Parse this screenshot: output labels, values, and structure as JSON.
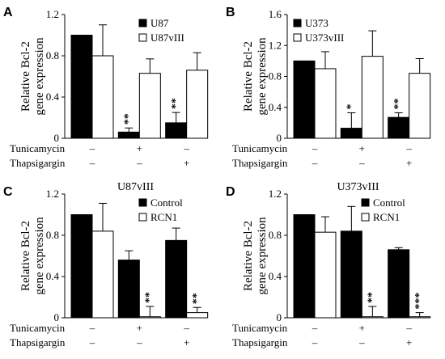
{
  "chart_data": [
    {
      "panel_label": "A",
      "type": "bar",
      "title": "",
      "ylabel": [
        "Relative Bcl-2",
        "gene expression"
      ],
      "ylim": [
        0,
        1.2
      ],
      "yticks": [
        "0",
        "0.4",
        "0.8",
        "1.2"
      ],
      "ytick_values": [
        0,
        0.4,
        0.8,
        1.2
      ],
      "legend_placement": "top-right",
      "series": [
        {
          "name": "U87",
          "fill": "black",
          "values": [
            1.0,
            0.06,
            0.15
          ],
          "errors": [
            0,
            0.04,
            0.1
          ],
          "sig": [
            "",
            "**",
            "**"
          ]
        },
        {
          "name": "U87vIII",
          "fill": "white",
          "values": [
            0.8,
            0.63,
            0.66
          ],
          "errors": [
            0.3,
            0.14,
            0.17
          ],
          "sig": [
            "",
            "",
            ""
          ]
        }
      ],
      "treatments": [
        {
          "name": "Tunicamycin",
          "marks": [
            "–",
            "+",
            "–"
          ]
        },
        {
          "name": "Thapsigargin",
          "marks": [
            "–",
            "–",
            "+"
          ]
        }
      ]
    },
    {
      "panel_label": "B",
      "type": "bar",
      "title": "",
      "ylabel": [
        "Relative Bcl-2",
        "gene expression"
      ],
      "ylim": [
        0,
        1.6
      ],
      "yticks": [
        "0",
        "0.4",
        "0.8",
        "1.2",
        "1.6"
      ],
      "ytick_values": [
        0,
        0.4,
        0.8,
        1.2,
        1.6
      ],
      "legend_placement": "top-left",
      "series": [
        {
          "name": "U373",
          "fill": "black",
          "values": [
            1.0,
            0.13,
            0.27
          ],
          "errors": [
            0,
            0.2,
            0.06
          ],
          "sig": [
            "",
            "*",
            "**"
          ]
        },
        {
          "name": "U373vIII",
          "fill": "white",
          "values": [
            0.9,
            1.06,
            0.84
          ],
          "errors": [
            0.22,
            0.33,
            0.19
          ],
          "sig": [
            "",
            "",
            ""
          ]
        }
      ],
      "treatments": [
        {
          "name": "Tunicamycin",
          "marks": [
            "–",
            "+",
            "–"
          ]
        },
        {
          "name": "Thapsigargin",
          "marks": [
            "–",
            "–",
            "+"
          ]
        }
      ]
    },
    {
      "panel_label": "C",
      "type": "bar",
      "title": "U87vIII",
      "ylabel": [
        "Relative Bcl-2",
        "gene expression"
      ],
      "ylim": [
        0,
        1.2
      ],
      "yticks": [
        "0",
        "0.4",
        "0.8",
        "1.2"
      ],
      "ytick_values": [
        0,
        0.4,
        0.8,
        1.2
      ],
      "legend_placement": "top-right",
      "series": [
        {
          "name": "Control",
          "fill": "black",
          "values": [
            1.0,
            0.56,
            0.75
          ],
          "errors": [
            0,
            0.09,
            0.12
          ],
          "sig": [
            "",
            "",
            ""
          ]
        },
        {
          "name": "RCN1",
          "fill": "white",
          "values": [
            0.84,
            0.01,
            0.05
          ],
          "errors": [
            0.27,
            0.1,
            0.05
          ],
          "sig": [
            "",
            "**",
            "**"
          ]
        }
      ],
      "treatments": [
        {
          "name": "Tunicamycin",
          "marks": [
            "–",
            "+",
            "–"
          ]
        },
        {
          "name": "Thapsigargin",
          "marks": [
            "–",
            "–",
            "+"
          ]
        }
      ]
    },
    {
      "panel_label": "D",
      "type": "bar",
      "title": "U373vIII",
      "ylabel": [
        "Relative Bcl-2",
        "gene expression"
      ],
      "ylim": [
        0,
        1.2
      ],
      "yticks": [
        "0",
        "0.4",
        "0.8",
        "1.2"
      ],
      "ytick_values": [
        0,
        0.4,
        0.8,
        1.2
      ],
      "legend_placement": "top-right",
      "series": [
        {
          "name": "Control",
          "fill": "black",
          "values": [
            1.0,
            0.84,
            0.66
          ],
          "errors": [
            0,
            0.24,
            0.02
          ],
          "sig": [
            "",
            "",
            ""
          ]
        },
        {
          "name": "RCN1",
          "fill": "white",
          "values": [
            0.83,
            0.01,
            0.01
          ],
          "errors": [
            0.15,
            0.1,
            0.04
          ],
          "sig": [
            "",
            "**",
            "***"
          ]
        }
      ],
      "treatments": [
        {
          "name": "Tunicamycin",
          "marks": [
            "–",
            "+",
            "–"
          ]
        },
        {
          "name": "Thapsigargin",
          "marks": [
            "–",
            "–",
            "+"
          ]
        }
      ]
    }
  ]
}
